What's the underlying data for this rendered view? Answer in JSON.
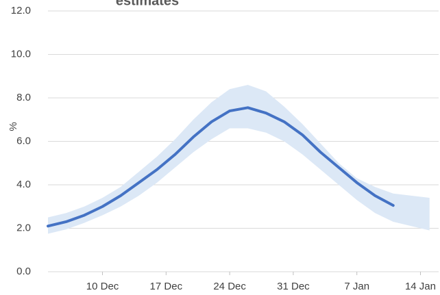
{
  "chart_data": {
    "type": "line",
    "title": "estimates",
    "ylabel": "%",
    "xlim": [
      0,
      43
    ],
    "xticks": [
      {
        "value": 6,
        "label": "10 Dec"
      },
      {
        "value": 13,
        "label": "17 Dec"
      },
      {
        "value": 20,
        "label": "24 Dec"
      },
      {
        "value": 27,
        "label": "31 Dec"
      },
      {
        "value": 34,
        "label": "7 Jan"
      },
      {
        "value": 41,
        "label": "14 Jan"
      }
    ],
    "ylim": [
      0,
      12
    ],
    "yticks": [
      {
        "value": 0,
        "label": "0.0"
      },
      {
        "value": 2,
        "label": "2.0"
      },
      {
        "value": 4,
        "label": "4.0"
      },
      {
        "value": 6,
        "label": "6.0"
      },
      {
        "value": 8,
        "label": "8.0"
      },
      {
        "value": 10,
        "label": "10.0"
      },
      {
        "value": 12,
        "label": "12.0"
      }
    ],
    "grid": true,
    "x": [
      0,
      2,
      4,
      6,
      8,
      10,
      12,
      14,
      16,
      18,
      20,
      22,
      24,
      26,
      28,
      30,
      32,
      34,
      36,
      38
    ],
    "series": [
      {
        "color": "#4472c4",
        "values": [
          2.1,
          2.3,
          2.6,
          3.0,
          3.5,
          4.1,
          4.7,
          5.4,
          6.2,
          6.9,
          7.4,
          7.55,
          7.3,
          6.9,
          6.3,
          5.5,
          4.8,
          4.1,
          3.5,
          3.05
        ]
      }
    ],
    "band": {
      "color": "#dce8f6",
      "x": [
        0,
        2,
        4,
        6,
        8,
        10,
        12,
        14,
        16,
        18,
        20,
        22,
        24,
        26,
        28,
        30,
        32,
        34,
        36,
        38,
        42
      ],
      "upper": [
        2.5,
        2.7,
        3.0,
        3.4,
        3.9,
        4.6,
        5.3,
        6.1,
        7.0,
        7.8,
        8.4,
        8.6,
        8.3,
        7.6,
        6.8,
        5.9,
        5.0,
        4.3,
        3.9,
        3.6,
        3.4
      ],
      "lower": [
        1.75,
        1.95,
        2.25,
        2.6,
        3.0,
        3.5,
        4.1,
        4.8,
        5.5,
        6.1,
        6.6,
        6.6,
        6.4,
        6.0,
        5.4,
        4.7,
        4.0,
        3.3,
        2.7,
        2.3,
        1.9
      ]
    }
  }
}
